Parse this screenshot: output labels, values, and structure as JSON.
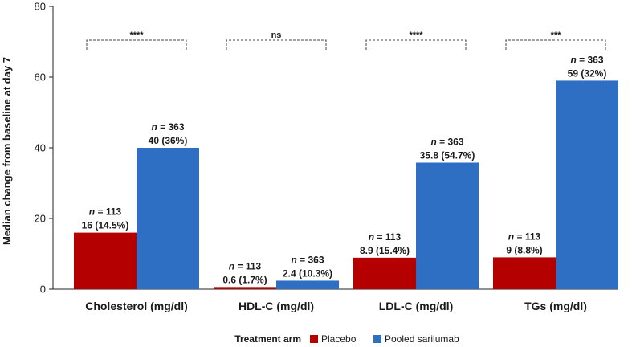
{
  "chart_data": {
    "type": "bar",
    "ylabel": "Median change from baseline at day 7",
    "ylim": [
      0,
      80
    ],
    "yticks": [
      0,
      20,
      40,
      60,
      80
    ],
    "categories": [
      "Cholesterol (mg/dl)",
      "HDL-C (mg/dl)",
      "LDL-C (mg/dl)",
      "TGs (mg/dl)"
    ],
    "series": [
      {
        "name": "Placebo",
        "color": "#b50000",
        "values": [
          16,
          0.6,
          8.9,
          9
        ],
        "n_label": [
          "n = 113",
          "n = 113",
          "n = 113",
          "n = 113"
        ],
        "value_label": [
          "16 (14.5%)",
          "0.6 (1.7%)",
          "8.9 (15.4%)",
          "9 (8.8%)"
        ]
      },
      {
        "name": "Pooled sarilumab",
        "color": "#2e6fc4",
        "values": [
          40,
          2.4,
          35.8,
          59
        ],
        "n_label": [
          "n = 363",
          "n = 363",
          "n = 363",
          "n = 363"
        ],
        "value_label": [
          "40 (36%)",
          "2.4 (10.3%)",
          "35.8 (54.7%)",
          "59 (32%)"
        ]
      }
    ],
    "significance": [
      "****",
      "ns",
      "****",
      "***"
    ],
    "legend": {
      "title": "Treatment arm",
      "position": "bottom-center"
    }
  }
}
